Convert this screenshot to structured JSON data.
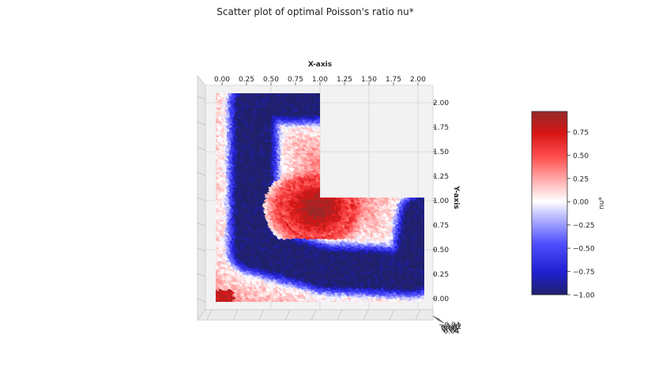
{
  "title": "Scatter plot of optimal Poisson's ratio nu*",
  "chart_data": {
    "type": "scatter",
    "title": "Scatter plot of optimal Poisson's ratio nu*",
    "xlabel": "X-axis",
    "ylabel": "Y-axis",
    "xlim": [
      0,
      2.1
    ],
    "ylim": [
      0,
      2.1
    ],
    "x_ticks": [
      "0.00",
      "0.25",
      "0.50",
      "0.75",
      "1.00",
      "1.25",
      "1.50",
      "1.75",
      "2.00"
    ],
    "y_ticks": [
      "0.00",
      "0.25",
      "0.50",
      "0.75",
      "1.00",
      "1.25",
      "1.50",
      "1.75",
      "2.00"
    ],
    "z_ticks": [
      "−0.04",
      "−0.02",
      "0.00",
      "0.02",
      "0.04"
    ],
    "grid": true,
    "colormap": "seismic",
    "domain_polygon": [
      [
        0,
        0
      ],
      [
        2.1,
        0
      ],
      [
        2.1,
        1.05
      ],
      [
        1.05,
        1.05
      ],
      [
        1.05,
        2.1
      ],
      [
        0,
        2.1
      ]
    ],
    "value_field_keypoints": [
      {
        "x": 0.05,
        "y": 1.95,
        "nu": 0.35
      },
      {
        "x": 0.35,
        "y": 1.6,
        "nu": -1.0
      },
      {
        "x": 0.25,
        "y": 0.4,
        "nu": -1.0
      },
      {
        "x": 1.5,
        "y": 0.35,
        "nu": -1.0
      },
      {
        "x": 1.9,
        "y": 0.55,
        "nu": -0.6
      },
      {
        "x": 0.95,
        "y": 0.95,
        "nu": 0.9
      },
      {
        "x": 1.4,
        "y": 0.85,
        "nu": 0.55
      },
      {
        "x": 1.2,
        "y": 0.05,
        "nu": 0.3
      },
      {
        "x": 0.02,
        "y": 1.0,
        "nu": 0.3
      },
      {
        "x": 0.05,
        "y": 0.05,
        "nu": 0.8
      }
    ],
    "colorbar": {
      "label": "nu*",
      "range": [
        -1.0,
        0.97
      ],
      "ticks": [
        "0.75",
        "0.50",
        "0.25",
        "0.00",
        "−0.25",
        "−0.50",
        "−0.75",
        "−1.00"
      ],
      "tick_values": [
        0.75,
        0.5,
        0.25,
        0.0,
        -0.25,
        -0.5,
        -0.75,
        -1.0
      ]
    }
  }
}
